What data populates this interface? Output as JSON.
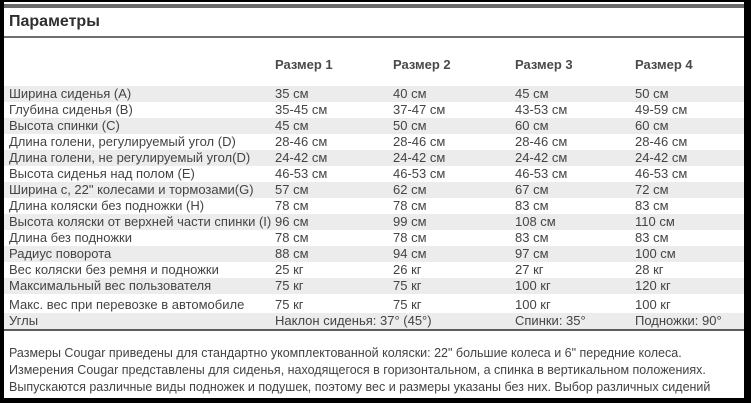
{
  "title": "Параметры",
  "table": {
    "columns": [
      "Размер 1",
      "Размер 2",
      "Размер 3",
      "Размер 4"
    ],
    "rows": [
      {
        "label": "Ширина сиденья (A)",
        "values": [
          "35 см",
          "40 см",
          "45 см",
          "50 см"
        ]
      },
      {
        "label": "Глубина сиденья (B)",
        "values": [
          "35-45 см",
          "37-47 см",
          "43-53 см",
          "49-59 см"
        ]
      },
      {
        "label": "Высота спинки (C)",
        "values": [
          "45 см",
          "50 см",
          "60 см",
          "60 см"
        ]
      },
      {
        "label": "Длина голени, регулируемый угол (D)",
        "values": [
          "28-46 см",
          "28-46 см",
          "28-46 см",
          "28-46 см"
        ]
      },
      {
        "label": "Длина голени, не регулируемый угол(D)",
        "values": [
          "24-42 см",
          "24-42 см",
          "24-42 см",
          "24-42 см"
        ]
      },
      {
        "label": "Высота сиденья над полом (E)",
        "values": [
          "46-53 см",
          "46-53 см",
          "46-53 см",
          "46-53 см"
        ]
      },
      {
        "label": "Ширина с, 22\" колесами и тормозами(G)",
        "values": [
          "57 см",
          "62 см",
          "67 см",
          "72 см"
        ]
      },
      {
        "label": "Длина коляски без подножки (H)",
        "values": [
          "78 см",
          "78 см",
          "83 см",
          "83 см"
        ]
      },
      {
        "label": "Высота коляски от верхней части спинки (I)",
        "values": [
          "96 см",
          "99 см",
          "108 см",
          "110 см"
        ]
      },
      {
        "label": "Длина без подножки",
        "values": [
          "78 см",
          "78 см",
          "83 см",
          "83 см"
        ]
      },
      {
        "label": "Радиус поворота",
        "values": [
          "88 см",
          "94 см",
          "97 см",
          "100 см"
        ]
      },
      {
        "label": "Вес коляски без ремня и подножки",
        "values": [
          "25 кг",
          "26 кг",
          "27 кг",
          "28 кг"
        ]
      },
      {
        "label": "Максимальный вес пользователя",
        "values": [
          "75 кг",
          "75 кг",
          "100 кг",
          "120 кг"
        ]
      },
      {
        "label": "Макс. вес при перевозке в автомобиле",
        "values": [
          "75 кг",
          "75 кг",
          "100 кг",
          "100 кг"
        ]
      },
      {
        "label": "Углы",
        "values": [
          "Наклон сиденья: 37° (45°)",
          "",
          "Спинки: 35°",
          "Подножки: 90°"
        ],
        "span_first_two": true
      }
    ]
  },
  "footnote": "Размеры Cougar приведены для стандартно укомплектованной коляски: 22\" большие колеса и 6\" передние колеса. Измерения Cougar представлены для сиденья, находящегося в горизонтальном, а спинка в вертикальном положениях. Выпускаются различные виды подножек и подушек, поэтому вес и размеры указаны без них. Выбор различных сидений отразится на изменении параметров коляски.",
  "colors": {
    "stripe": "#ececec",
    "text": "#444444",
    "divider": "#6a6a6a",
    "frame": "#000000"
  }
}
